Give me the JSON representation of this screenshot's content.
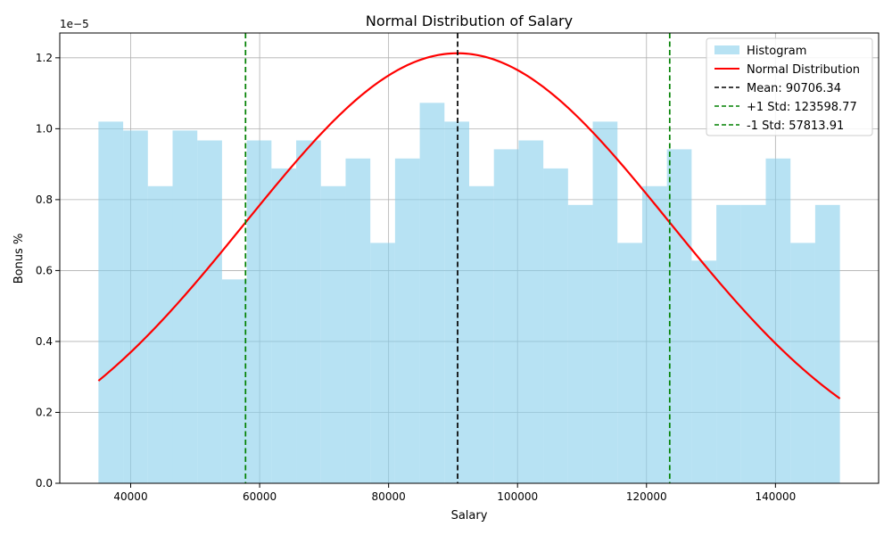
{
  "chart_data": {
    "type": "histogram",
    "title": "Normal Distribution of Salary",
    "xlabel": "Salary",
    "ylabel": "Bonus %",
    "y_offset_label": "1e−5",
    "xlim": [
      29000,
      156000
    ],
    "ylim": [
      0,
      1.27
    ],
    "x_ticks": [
      40000,
      60000,
      80000,
      100000,
      120000,
      140000
    ],
    "x_tick_labels": [
      "40000",
      "60000",
      "80000",
      "100000",
      "120000",
      "140000"
    ],
    "y_ticks": [
      0.0,
      0.2,
      0.4,
      0.6,
      0.8,
      1.0,
      1.2
    ],
    "y_tick_labels": [
      "0.0",
      "0.2",
      "0.4",
      "0.6",
      "0.8",
      "1.0",
      "1.2"
    ],
    "grid": true,
    "legend_position": "top-right",
    "histogram": {
      "name": "Histogram",
      "color": "#87CEEB",
      "opacity": 0.6,
      "bin_start": 35000,
      "bin_end": 150000,
      "density_values": [
        1.02,
        0.995,
        0.838,
        0.995,
        0.967,
        0.575,
        0.967,
        0.888,
        0.967,
        0.838,
        0.916,
        0.678,
        0.916,
        1.073,
        1.02,
        0.838,
        0.942,
        0.967,
        0.888,
        0.785,
        1.02,
        0.678,
        0.838,
        0.942,
        0.628,
        0.785,
        0.785,
        0.916,
        0.678,
        0.785
      ]
    },
    "normal_curve": {
      "name": "Normal Distribution",
      "color": "#ff0000",
      "mean": 90706.34,
      "std": 32892.43,
      "x_range": [
        35000,
        150000
      ],
      "y_scale": 100000
    },
    "vlines": [
      {
        "name": "Mean: 90706.34",
        "x": 90706.34,
        "color": "#000000"
      },
      {
        "name": "+1 Std: 123598.77",
        "x": 123598.77,
        "color": "#008000"
      },
      {
        "name": "-1 Std: 57813.91",
        "x": 57813.91,
        "color": "#008000"
      }
    ]
  }
}
